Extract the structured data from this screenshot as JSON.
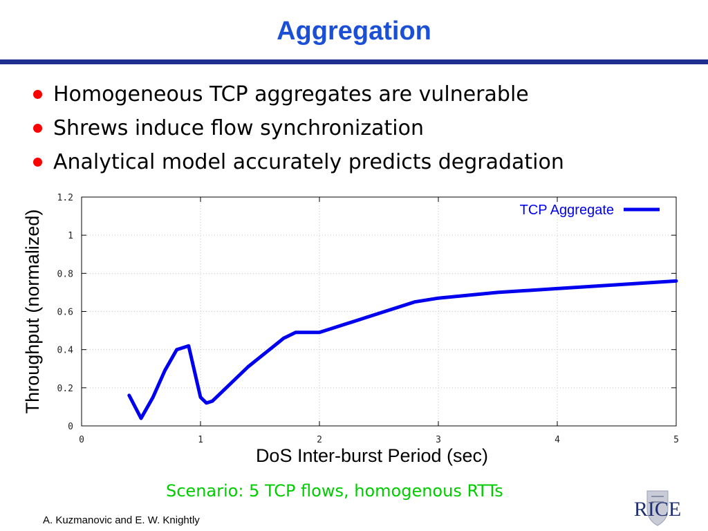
{
  "slide": {
    "title": "Aggregation",
    "bullets": [
      "Homogeneous TCP aggregates are vulnerable",
      "Shrews induce flow synchronization",
      "Analytical model accurately predicts degradation"
    ],
    "scenario": "Scenario: 5 TCP flows, homogenous RTTs",
    "authors": "A. Kuzmanovic and E. W. Knightly",
    "logo_text": "RICE"
  },
  "colors": {
    "title": "#1a4fd6",
    "rule": "#1f2f8f",
    "bullet": "#ff0000",
    "scenario": "#00cc00",
    "series": "#0000ee"
  },
  "chart_data": {
    "type": "line",
    "title": "",
    "xlabel": "DoS Inter-burst Period (sec)",
    "ylabel": "Throughput (normalized)",
    "xlim": [
      0,
      5
    ],
    "ylim": [
      0,
      1.2
    ],
    "xticks": [
      "0",
      "1",
      "2",
      "3",
      "4",
      "5"
    ],
    "yticks": [
      "0",
      "0.2",
      "0.4",
      "0.6",
      "0.8",
      "1",
      "1.2"
    ],
    "grid": true,
    "legend": "top-right",
    "series": [
      {
        "name": "TCP Aggregate",
        "x": [
          0.4,
          0.5,
          0.6,
          0.7,
          0.8,
          0.9,
          1.0,
          1.05,
          1.1,
          1.2,
          1.3,
          1.4,
          1.5,
          1.6,
          1.7,
          1.8,
          1.9,
          2.0,
          2.2,
          2.4,
          2.6,
          2.8,
          3.0,
          3.5,
          4.0,
          4.5,
          5.0
        ],
        "y": [
          0.16,
          0.04,
          0.15,
          0.29,
          0.4,
          0.42,
          0.15,
          0.12,
          0.13,
          0.19,
          0.25,
          0.31,
          0.36,
          0.41,
          0.46,
          0.49,
          0.49,
          0.49,
          0.53,
          0.57,
          0.61,
          0.65,
          0.67,
          0.7,
          0.72,
          0.74,
          0.76
        ]
      }
    ]
  }
}
